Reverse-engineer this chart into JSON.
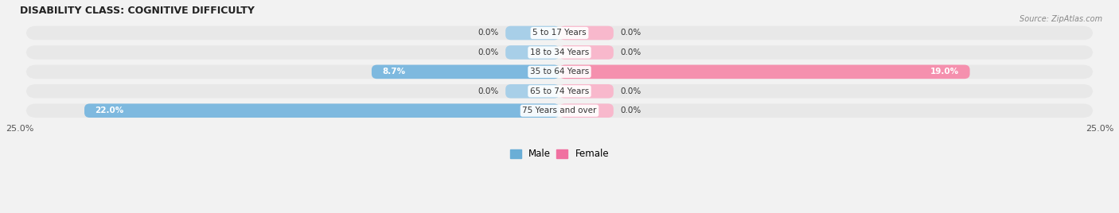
{
  "title": "DISABILITY CLASS: COGNITIVE DIFFICULTY",
  "source": "Source: ZipAtlas.com",
  "categories": [
    "5 to 17 Years",
    "18 to 34 Years",
    "35 to 64 Years",
    "65 to 74 Years",
    "75 Years and over"
  ],
  "male_values": [
    0.0,
    0.0,
    8.7,
    0.0,
    22.0
  ],
  "female_values": [
    0.0,
    0.0,
    19.0,
    0.0,
    0.0
  ],
  "x_max": 25.0,
  "x_min": -25.0,
  "male_color": "#7eb9df",
  "female_color": "#f590ae",
  "male_small_color": "#a8cfe8",
  "female_small_color": "#f8b8cc",
  "row_bg_color": "#e8e8e8",
  "row_bg_alt_color": "#dedede",
  "label_color": "#333333",
  "title_color": "#222222",
  "source_color": "#888888",
  "axis_label_color": "#555555",
  "bar_height": 0.72,
  "small_bar_width": 2.5,
  "legend_male_color": "#6aaed6",
  "legend_female_color": "#f070a0",
  "fig_bg": "#f2f2f2"
}
